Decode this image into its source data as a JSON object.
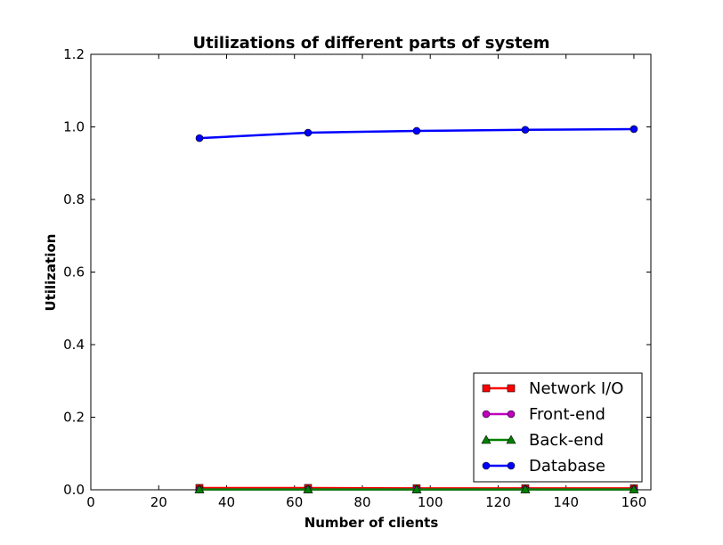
{
  "chart_data": {
    "type": "line",
    "title": "Utilizations of different parts of system",
    "xlabel": "Number of clients",
    "ylabel": "Utilization",
    "xlim": [
      0,
      165
    ],
    "ylim": [
      0,
      1.2
    ],
    "xticks": [
      0,
      20,
      40,
      60,
      80,
      100,
      120,
      140,
      160
    ],
    "yticks": [
      0.0,
      0.2,
      0.4,
      0.6,
      0.8,
      1.0,
      1.2
    ],
    "xtick_labels": [
      "0",
      "20",
      "40",
      "60",
      "80",
      "100",
      "120",
      "140",
      "160"
    ],
    "ytick_labels": [
      "0.0",
      "0.2",
      "0.4",
      "0.6",
      "0.8",
      "1.0",
      "1.2"
    ],
    "grid": false,
    "legend_position": "lower-right",
    "x": [
      32,
      64,
      96,
      128,
      160
    ],
    "series": [
      {
        "name": "Network I/O",
        "values": [
          0.005,
          0.005,
          0.004,
          0.004,
          0.004
        ],
        "color": "#ff0000",
        "marker": "square"
      },
      {
        "name": "Front-end",
        "values": [
          0.001,
          0.001,
          0.001,
          0.001,
          0.001
        ],
        "color": "#bf00bf",
        "marker": "circle"
      },
      {
        "name": "Back-end",
        "values": [
          0.001,
          0.001,
          0.001,
          0.001,
          0.001
        ],
        "color": "#008000",
        "marker": "triangle"
      },
      {
        "name": "Database",
        "values": [
          0.969,
          0.984,
          0.989,
          0.992,
          0.994
        ],
        "color": "#0000ff",
        "marker": "circle"
      }
    ]
  }
}
